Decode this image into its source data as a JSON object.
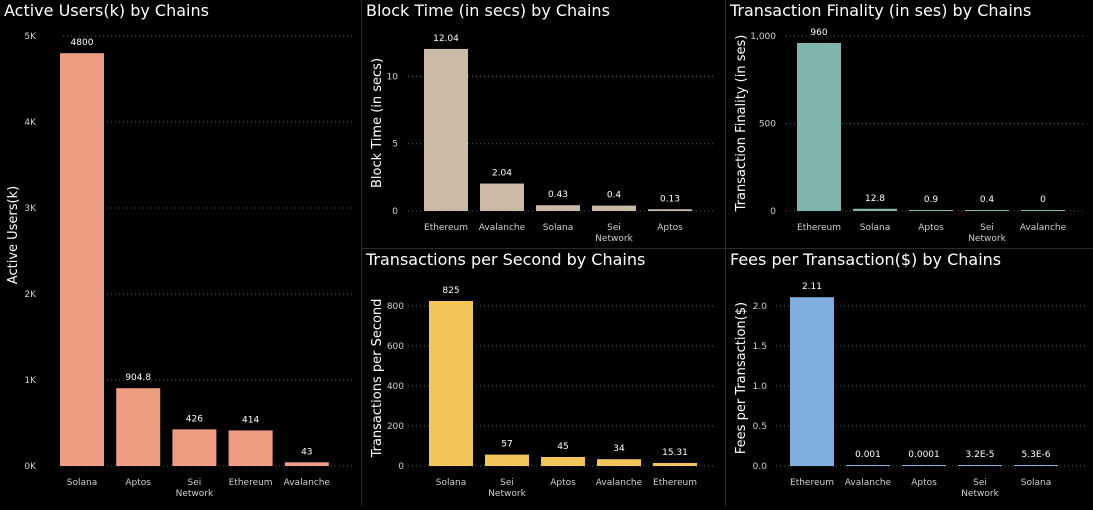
{
  "chart_data": [
    {
      "type": "bar",
      "title": "Active Users(k) by Chains",
      "xlabel": "",
      "ylabel": "Active Users(k)",
      "categories": [
        "Solana",
        "Aptos",
        "Sei Network",
        "Ethereum",
        "Avalanche"
      ],
      "values": [
        4800,
        904.8,
        426,
        414,
        43
      ],
      "data_labels": [
        "4800",
        "904.8",
        "426",
        "414",
        "43"
      ],
      "ylim": [
        0,
        5000
      ],
      "yticks": [
        0,
        1000,
        2000,
        3000,
        4000,
        5000
      ],
      "ytick_labels": [
        "0K",
        "1K",
        "2K",
        "3K",
        "4K",
        "5K"
      ],
      "color": "#EE9C82",
      "grid": true
    },
    {
      "type": "bar",
      "title": "Block Time (in secs) by Chains",
      "xlabel": "",
      "ylabel": "Block Time (in secs)",
      "categories": [
        "Ethereum",
        "Avalanche",
        "Solana",
        "Sei Network",
        "Aptos"
      ],
      "values": [
        12.04,
        2.04,
        0.43,
        0.4,
        0.13
      ],
      "data_labels": [
        "12.04",
        "2.04",
        "0.43",
        "0.4",
        "0.13"
      ],
      "ylim": [
        0,
        13
      ],
      "yticks": [
        0,
        5,
        10
      ],
      "ytick_labels": [
        "0",
        "5",
        "10"
      ],
      "color": "#CBBBA6",
      "grid": true
    },
    {
      "type": "bar",
      "title": "Transaction Finality (in ses) by Chains",
      "xlabel": "",
      "ylabel": "Transaction Finality (in ses)",
      "categories": [
        "Ethereum",
        "Solana",
        "Aptos",
        "Sei Network",
        "Avalanche"
      ],
      "values": [
        960,
        12.8,
        0.9,
        0.4,
        0
      ],
      "data_labels": [
        "960",
        "12.8",
        "0.9",
        "0.4",
        "0"
      ],
      "ylim": [
        0,
        1000
      ],
      "yticks": [
        0,
        500,
        1000
      ],
      "ytick_labels": [
        "0",
        "500",
        "1,000"
      ],
      "color": "#80B5AC",
      "grid": true
    },
    {
      "type": "bar",
      "title": "Transactions per Second by Chains",
      "xlabel": "",
      "ylabel": "Transactions per Second",
      "categories": [
        "Solana",
        "Sei Network",
        "Aptos",
        "Avalanche",
        "Ethereum"
      ],
      "values": [
        825,
        57,
        45,
        34,
        15.31
      ],
      "data_labels": [
        "825",
        "57",
        "45",
        "34",
        "15.31"
      ],
      "ylim": [
        0,
        880
      ],
      "yticks": [
        0,
        200,
        400,
        600,
        800
      ],
      "ytick_labels": [
        "0",
        "200",
        "400",
        "600",
        "800"
      ],
      "color": "#F2C55A",
      "grid": true
    },
    {
      "type": "bar",
      "title": "Fees per Transaction($) by Chains",
      "xlabel": "",
      "ylabel": "Fees per Transaction($)",
      "categories": [
        "Ethereum",
        "Avalanche",
        "Aptos",
        "Sei Network",
        "Solana"
      ],
      "values": [
        2.11,
        0.001,
        0.0001,
        3.2e-05,
        5.3e-06
      ],
      "data_labels": [
        "2.11",
        "0.001",
        "0.0001",
        "3.2E-5",
        "5.3E-6"
      ],
      "ylim": [
        0,
        2.2
      ],
      "yticks": [
        0,
        0.5,
        1,
        1.5,
        2
      ],
      "ytick_labels": [
        "0.0",
        "0.5",
        "1.0",
        "1.5",
        "2.0"
      ],
      "color": "#7FAEDF",
      "grid": true
    }
  ]
}
